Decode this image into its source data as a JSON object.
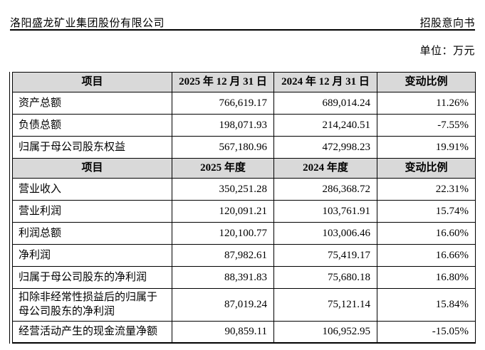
{
  "header": {
    "company": "洛阳盛龙矿业集团股份有限公司",
    "doc_type": "招股意向书"
  },
  "unit_label": "单位：万元",
  "colors": {
    "header_bg": "#d9d9d9",
    "border": "#000000",
    "text": "#000000"
  },
  "table": {
    "sections": [
      {
        "header": [
          "项目",
          "2025 年 12 月 31 日",
          "2024 年 12 月 31 日",
          "变动比例"
        ],
        "rows": [
          [
            "资产总额",
            "766,619.17",
            "689,014.24",
            "11.26%"
          ],
          [
            "负债总额",
            "198,071.93",
            "214,240.51",
            "-7.55%"
          ],
          [
            "归属于母公司股东权益",
            "567,180.96",
            "472,998.23",
            "19.91%"
          ]
        ]
      },
      {
        "header": [
          "项目",
          "2025 年度",
          "2024 年度",
          "变动比例"
        ],
        "rows": [
          [
            "营业收入",
            "350,251.28",
            "286,368.72",
            "22.31%"
          ],
          [
            "营业利润",
            "120,091.21",
            "103,761.91",
            "15.74%"
          ],
          [
            "利润总额",
            "120,100.77",
            "103,006.46",
            "16.60%"
          ],
          [
            "净利润",
            "87,982.61",
            "75,419.17",
            "16.66%"
          ],
          [
            "归属于母公司股东的净利润",
            "88,391.83",
            "75,680.18",
            "16.80%"
          ],
          [
            "扣除非经常性损益后的归属于母公司股东的净利润",
            "87,019.24",
            "75,121.14",
            "15.84%"
          ],
          [
            "经营活动产生的现金流量净额",
            "90,859.11",
            "106,952.95",
            "-15.05%"
          ]
        ]
      }
    ]
  }
}
